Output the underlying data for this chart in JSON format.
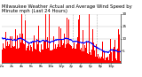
{
  "title": "Milwaukee Weather Actual and Average Wind Speed by Minute mph (Last 24 Hours)",
  "title_fontsize": 3.8,
  "bar_color": "#FF0000",
  "avg_color": "#0000FF",
  "background_color": "#FFFFFF",
  "plot_bg_color": "#FFFFFF",
  "grid_color": "#BBBBBB",
  "ylim": [
    0,
    20
  ],
  "yticks": [
    5,
    10,
    15,
    20
  ],
  "ylabel_fontsize": 3.0,
  "xlabel_fontsize": 2.8,
  "n_points": 1440,
  "seed": 42,
  "dashed_vline_color": "#999999",
  "dashed_vline_positions": [
    288,
    576,
    864,
    1152
  ]
}
